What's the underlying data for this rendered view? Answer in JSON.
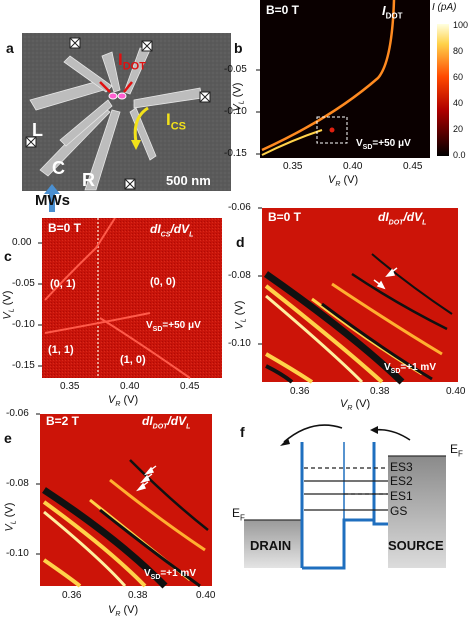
{
  "figure": {
    "panels": {
      "a": {
        "label": "a",
        "current_dot": "I",
        "current_dot_sub": "DOT",
        "current_cs": "I",
        "current_cs_sub": "CS",
        "gate_L": "L",
        "gate_C": "C",
        "gate_R": "R",
        "scale": "500 nm",
        "microwaves": "MWs"
      },
      "b": {
        "label": "b",
        "field": "B=0 T",
        "signal": "I",
        "signal_sub": "DOT",
        "vsd": "V",
        "vsd_sub": "SD",
        "vsd_value": "=+50 μV",
        "colorbar_title": "I (pA)",
        "colorbar_ticks": [
          "0.0",
          "20",
          "40",
          "60",
          "80",
          "100"
        ],
        "xlabel": "V",
        "xlabel_sub": "R",
        "xlabel_unit": " (V)",
        "ylabel": "V",
        "ylabel_sub": "L",
        "ylabel_unit": " (V)",
        "xticks": [
          "0.35",
          "0.40",
          "0.45"
        ],
        "yticks": [
          "-0.05",
          "-0.10",
          "-0.15"
        ]
      },
      "c": {
        "label": "c",
        "field": "B=0 T",
        "signal": "dI",
        "signal_sub": "CS",
        "signal_den": "/dV",
        "signal_den_sub": "L",
        "states": [
          "(0, 1)",
          "(0, 0)",
          "(1, 1)",
          "(1, 0)"
        ],
        "vsd": "V",
        "vsd_sub": "SD",
        "vsd_value": "=+50 μV",
        "xlabel": "V",
        "xlabel_sub": "R",
        "xlabel_unit": " (V)",
        "ylabel": "V",
        "ylabel_sub": "L",
        "ylabel_unit": " (V)",
        "xticks": [
          "0.35",
          "0.40",
          "0.45"
        ],
        "yticks": [
          "0.00",
          "-0.05",
          "-0.10",
          "-0.15"
        ]
      },
      "d": {
        "label": "d",
        "field": "B=0 T",
        "signal": "dI",
        "signal_sub": "DOT",
        "signal_den": "/dV",
        "signal_den_sub": "L",
        "vsd": "V",
        "vsd_sub": "SD",
        "vsd_value": "=+1 mV",
        "xlabel": "V",
        "xlabel_sub": "R",
        "xlabel_unit": " (V)",
        "ylabel": "V",
        "ylabel_sub": "L",
        "ylabel_unit": " (V)",
        "xticks": [
          "0.36",
          "0.38",
          "0.40"
        ],
        "yticks": [
          "-0.06",
          "-0.08",
          "-0.10"
        ]
      },
      "e": {
        "label": "e",
        "field": "B=2 T",
        "signal": "dI",
        "signal_sub": "DOT",
        "signal_den": "/dV",
        "signal_den_sub": "L",
        "vsd": "V",
        "vsd_sub": "SD",
        "vsd_value": "=+1 mV",
        "xlabel": "V",
        "xlabel_sub": "R",
        "xlabel_unit": " (V)",
        "ylabel": "V",
        "ylabel_sub": "L",
        "ylabel_unit": " (V)",
        "xticks": [
          "0.36",
          "0.38",
          "0.40"
        ],
        "yticks": [
          "-0.06",
          "-0.08",
          "-0.10"
        ]
      },
      "f": {
        "label": "f",
        "levels": [
          "ES3",
          "ES2",
          "ES1",
          "GS"
        ],
        "drain": "DRAIN",
        "source": "SOURCE",
        "ef_sym": "E",
        "ef_sub": "F"
      }
    },
    "colors": {
      "map_bg": "#cc1408",
      "dark_bg": "#1a0000",
      "hot": "#ffd24a",
      "barrier": "#1f6fbf",
      "arrow_yellow": "#f3e21a",
      "arrow_red": "#e01010",
      "mw_arrow": "#4a8fd0"
    }
  }
}
